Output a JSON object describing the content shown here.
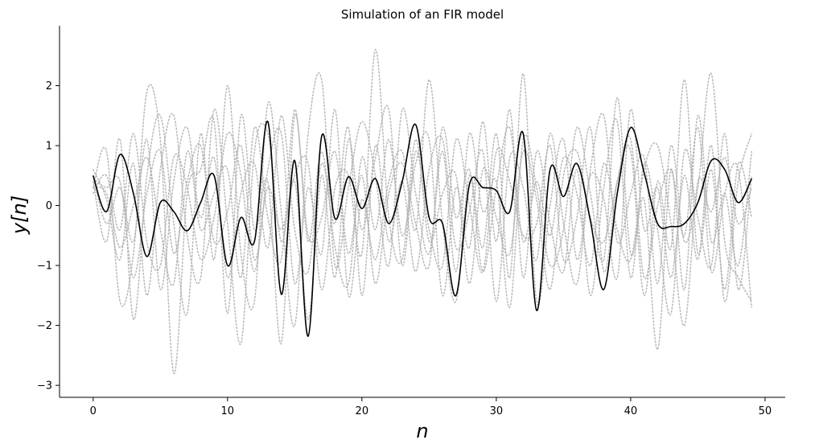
{
  "chart_data": {
    "type": "line",
    "title": "Simulation of an FIR model",
    "xlabel": "n",
    "ylabel": "y[n]",
    "xlim": [
      -2.5,
      51.5
    ],
    "ylim": [
      -3.2,
      3.0
    ],
    "xticks": [
      0,
      10,
      20,
      30,
      40,
      50
    ],
    "xtick_labels": [
      "0",
      "10",
      "20",
      "30",
      "40",
      "50"
    ],
    "yticks": [
      -3,
      -2,
      -1,
      0,
      1,
      2
    ],
    "ytick_labels": [
      "−3",
      "−2",
      "−1",
      "0",
      "1",
      "2"
    ],
    "spines": "left-bottom",
    "grid": false,
    "legend": "none",
    "colors": {
      "main": "#000000",
      "simulations": "#b0b0b0"
    },
    "x": [
      0,
      1,
      2,
      3,
      4,
      5,
      6,
      7,
      8,
      9,
      10,
      11,
      12,
      13,
      14,
      15,
      16,
      17,
      18,
      19,
      20,
      21,
      22,
      23,
      24,
      25,
      26,
      27,
      28,
      29,
      30,
      31,
      32,
      33,
      34,
      35,
      36,
      37,
      38,
      39,
      40,
      41,
      42,
      43,
      44,
      45,
      46,
      47,
      48,
      49
    ],
    "series": [
      {
        "style": "solid",
        "color": "#000000",
        "values": [
          0.5,
          -0.1,
          0.85,
          0.2,
          -0.85,
          0.05,
          -0.1,
          -0.42,
          0.05,
          0.5,
          -1.0,
          -0.2,
          -0.6,
          1.4,
          -1.48,
          0.75,
          -2.18,
          1.15,
          -0.22,
          0.48,
          -0.05,
          0.45,
          -0.3,
          0.4,
          1.35,
          -0.2,
          -0.3,
          -1.5,
          0.35,
          0.3,
          0.25,
          -0.1,
          1.2,
          -1.75,
          0.6,
          0.15,
          0.7,
          -0.25,
          -1.4,
          0.2,
          1.3,
          0.55,
          -0.3,
          -0.35,
          -0.3,
          0.05,
          0.75,
          0.6,
          0.05,
          0.45
        ]
      },
      {
        "style": "dotted",
        "color": "#b0b0b0",
        "values": [
          0.3,
          0.9,
          -1.6,
          -0.8,
          1.9,
          1.1,
          -2.8,
          0.2,
          0.6,
          1.4,
          -1.8,
          1.5,
          -0.4,
          0.4,
          -2.3,
          1.5,
          -0.6,
          0.9,
          -0.7,
          -1.3,
          0.8,
          -0.4,
          1.1,
          -0.5,
          0.7,
          1.1,
          -1.5,
          0.3,
          -0.7,
          1.4,
          -0.6,
          1.6,
          -1.2,
          0.9,
          -0.3,
          -1.1,
          0.6,
          -1.5,
          0.3,
          1.4,
          -1.2,
          0.7,
          -0.4,
          -1.8,
          0.9,
          -0.2,
          -1.0,
          1.2,
          -1.4,
          0.5
        ]
      },
      {
        "style": "dotted",
        "color": "#b0b0b0",
        "values": [
          0.4,
          -0.6,
          1.1,
          -1.9,
          0.5,
          1.5,
          -0.3,
          -1.8,
          1.2,
          -0.9,
          2.0,
          -0.8,
          -1.6,
          1.7,
          -0.1,
          -2.0,
          1.2,
          2.1,
          -1.0,
          0.3,
          1.4,
          0.5,
          -1.0,
          1.6,
          0.2,
          -0.8,
          0.9,
          -1.1,
          1.2,
          -0.1,
          0.4,
          -1.7,
          1.1,
          0.3,
          -1.0,
          -0.4,
          1.3,
          0.2,
          -0.9,
          1.8,
          -0.8,
          0.1,
          -2.4,
          0.6,
          -1.4,
          1.5,
          -0.6,
          0.2,
          -1.0,
          0.9
        ]
      },
      {
        "style": "dotted",
        "color": "#b0b0b0",
        "values": [
          0.6,
          0.1,
          -0.9,
          0.7,
          -1.5,
          0.6,
          1.5,
          -0.5,
          -1.2,
          1.6,
          -0.3,
          -2.3,
          0.9,
          1.2,
          -0.6,
          0.4,
          -1.9,
          0.5,
          -1.2,
          1.1,
          -0.4,
          0.8,
          1.6,
          -1.0,
          0.9,
          -0.4,
          -1.0,
          1.1,
          0.0,
          -1.1,
          0.9,
          0.4,
          -0.5,
          -0.3,
          1.0,
          -0.9,
          -0.2,
          1.3,
          -1.1,
          0.4,
          0.9,
          -1.5,
          0.4,
          -0.7,
          2.1,
          -0.8,
          0.6,
          -1.4,
          0.7,
          -0.2
        ]
      },
      {
        "style": "dotted",
        "color": "#b0b0b0",
        "values": [
          0.2,
          0.5,
          -0.4,
          1.2,
          -0.6,
          -1.0,
          0.8,
          0.3,
          -0.9,
          -0.2,
          1.2,
          0.5,
          -1.1,
          0.6,
          1.2,
          -1.3,
          0.3,
          -0.8,
          1.6,
          -1.5,
          0.1,
          -0.9,
          0.4,
          0.9,
          -0.4,
          2.1,
          -0.3,
          -1.6,
          0.5,
          -0.7,
          1.2,
          -1.2,
          2.2,
          -1.6,
          0.0,
          1.1,
          -0.9,
          0.5,
          0.1,
          -1.2,
          1.6,
          -0.4,
          0.3,
          -1.2,
          0.5,
          -0.9,
          1.0,
          -1.6,
          0.4,
          1.2
        ]
      },
      {
        "style": "dotted",
        "color": "#b0b0b0",
        "values": [
          0.5,
          -0.3,
          0.3,
          -0.6,
          1.1,
          -1.4,
          0.4,
          1.3,
          -0.2,
          0.8,
          -1.2,
          0.2,
          0.7,
          -0.7,
          1.5,
          -0.4,
          -1.1,
          0.7,
          -0.3,
          1.3,
          -1.5,
          1.0,
          -0.6,
          0.4,
          -1.1,
          0.6,
          1.1,
          -0.7,
          -0.1,
          0.9,
          -1.6,
          0.8,
          0.3,
          -0.9,
          1.2,
          -0.3,
          -1.3,
          0.6,
          1.5,
          -0.6,
          0.2,
          0.8,
          -1.3,
          1.0,
          -0.6,
          0.3,
          2.2,
          -0.6,
          -1.2,
          -1.6
        ]
      },
      {
        "style": "dotted",
        "color": "#b0b0b0",
        "values": [
          0.3,
          0.2,
          -0.7,
          0.0,
          0.8,
          -0.4,
          -1.3,
          0.9,
          -0.4,
          0.2,
          0.6,
          -1.2,
          1.3,
          -0.2,
          -0.9,
          1.6,
          -0.5,
          -0.2,
          0.9,
          -0.8,
          0.5,
          -1.3,
          0.2,
          0.7,
          -0.3,
          -1.0,
          1.3,
          -0.2,
          0.6,
          -1.1,
          0.3,
          1.3,
          -0.6,
          0.4,
          -0.5,
          0.8,
          0.2,
          -1.0,
          0.7,
          -0.4,
          -0.9,
          0.6,
          1.0,
          -0.3,
          -2.0,
          0.4,
          -0.1,
          0.8,
          -0.3,
          0.3
        ]
      },
      {
        "style": "dotted",
        "color": "#b0b0b0",
        "values": [
          0.45,
          0.3,
          0.4,
          -1.2,
          0.2,
          0.9,
          -0.8,
          0.4,
          1.0,
          -0.6,
          -0.1,
          1.0,
          -0.9,
          0.3,
          -0.4,
          0.5,
          0.7,
          -1.4,
          0.3,
          0.5,
          -0.8,
          2.6,
          -0.2,
          -0.9,
          1.1,
          -0.6,
          0.2,
          0.5,
          -1.3,
          0.6,
          -0.2,
          -0.8,
          0.9,
          0.1,
          -1.4,
          0.5,
          0.9,
          -0.2,
          -0.6,
          0.4,
          1.1,
          -1.2,
          0.0,
          0.6,
          -0.5,
          1.3,
          -1.1,
          0.2,
          0.6,
          -1.7
        ]
      }
    ]
  }
}
